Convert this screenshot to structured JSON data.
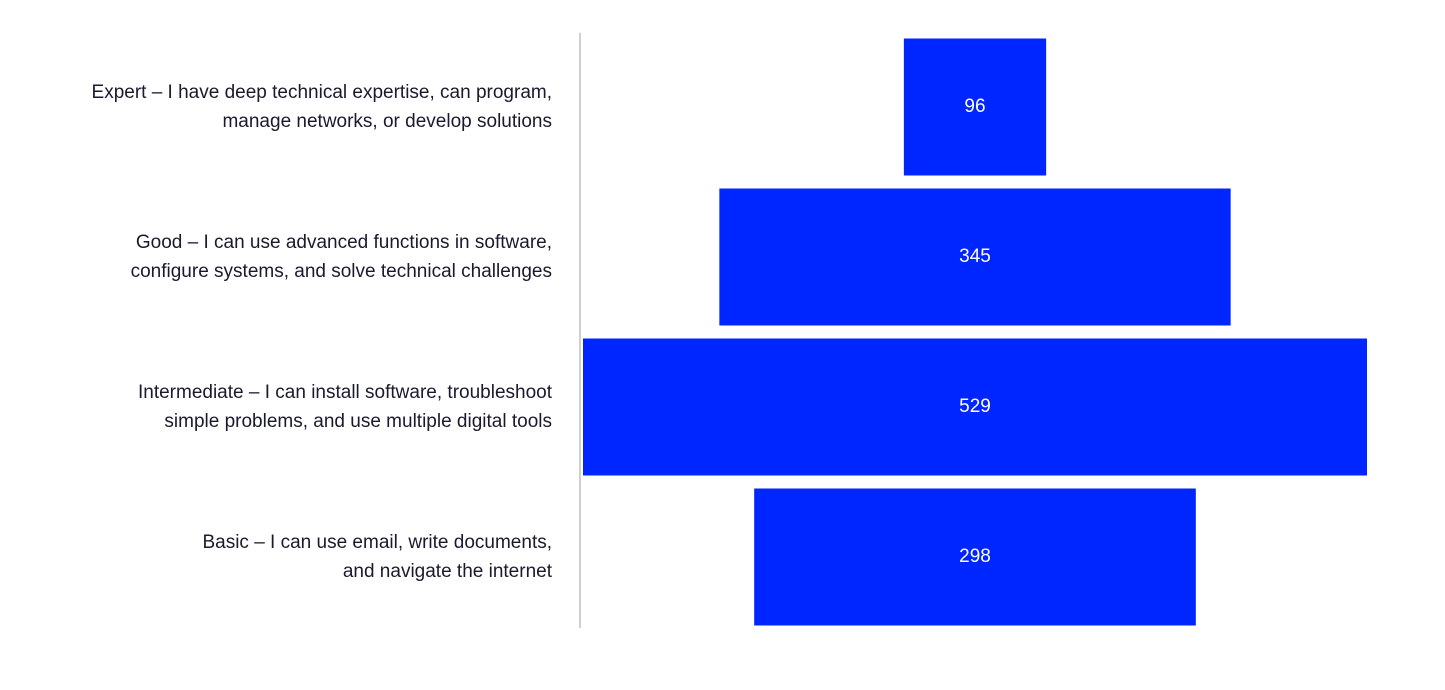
{
  "chart_data": {
    "type": "funnel",
    "categories": [
      "Expert – I have deep technical expertise, can program,\nmanage networks, or develop solutions",
      "Good – I can use advanced functions in software,\nconfigure systems, and solve technical challenges",
      "Intermediate – I can install software, troubleshoot\nsimple problems, and use multiple digital tools",
      "Basic – I can use email, write documents,\nand navigate the internet"
    ],
    "values": [
      96,
      345,
      529,
      298
    ],
    "color": "#0026ff"
  }
}
